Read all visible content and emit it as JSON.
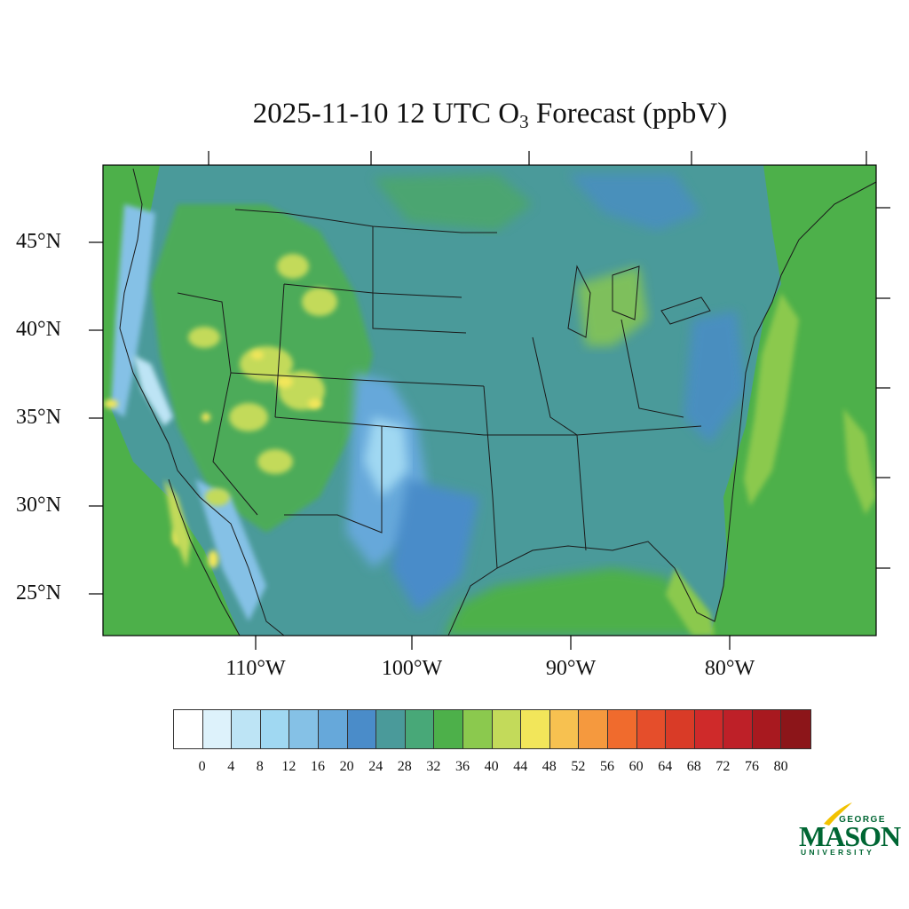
{
  "title": {
    "prefix": "2025-11-10 12 UTC O",
    "subscript": "3",
    "suffix": " Forecast (ppbV)"
  },
  "map": {
    "region": "Continental United States",
    "field": "Surface ozone forecast",
    "units": "ppbV",
    "lat_labels": [
      "45°N",
      "40°N",
      "35°N",
      "30°N",
      "25°N"
    ],
    "lon_labels": [
      "110°W",
      "100°W",
      "90°W",
      "80°W"
    ],
    "colors": {
      "background_dominant": "#4A9A9A",
      "east_coast": "#4DAF4A",
      "ocean_bands": "#8BC94E",
      "low_values": "#BDE4F5",
      "mountain_highs": "#F2E65A"
    }
  },
  "colorbar": {
    "colors": [
      "#FFFFFF",
      "#DDF2FB",
      "#BDE4F5",
      "#A0D8F2",
      "#85C1E6",
      "#66A8DA",
      "#4A8CC9",
      "#4A9A9A",
      "#48A878",
      "#4DB04A",
      "#8BC94E",
      "#C3DA5A",
      "#F2E65A",
      "#F7C150",
      "#F5993E",
      "#F06B2D",
      "#E54E2B",
      "#D93B27",
      "#CF2A2A",
      "#BE2028",
      "#A8191F",
      "#8C1519"
    ],
    "labels": [
      "0",
      "4",
      "8",
      "12",
      "16",
      "20",
      "24",
      "28",
      "32",
      "36",
      "40",
      "44",
      "48",
      "52",
      "56",
      "60",
      "64",
      "68",
      "72",
      "76",
      "80"
    ]
  },
  "logo": {
    "line1": "GEORGE",
    "line2": "MASON",
    "line3": "UNIVERSITY",
    "color": "#006633",
    "accent": "#F2C200"
  }
}
